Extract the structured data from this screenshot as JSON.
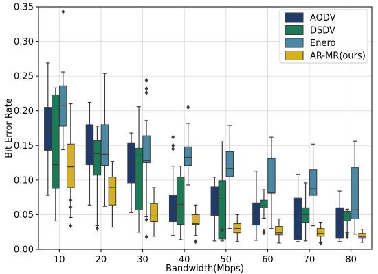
{
  "chart_data": {
    "type": "box",
    "xlabel": "Bandwidth(Mbps)",
    "ylabel": "Bit Error Rate",
    "categories": [
      "10",
      "20",
      "30",
      "40",
      "50",
      "60",
      "70",
      "80"
    ],
    "ylim": [
      0,
      0.35
    ],
    "yticks": [
      "0.00",
      "0.05",
      "0.10",
      "0.15",
      "0.20",
      "0.25",
      "0.30",
      "0.35"
    ],
    "grid": true,
    "legend": "top-right",
    "series": [
      {
        "name": "AODV",
        "color": "#1f3a6b",
        "boxes": [
          {
            "whislo": 0.078,
            "q1": 0.143,
            "med": 0.172,
            "q3": 0.205,
            "whishi": 0.269,
            "fliers": []
          },
          {
            "whislo": 0.064,
            "q1": 0.122,
            "med": 0.146,
            "q3": 0.18,
            "whishi": 0.212,
            "fliers": []
          },
          {
            "whislo": 0.053,
            "q1": 0.096,
            "med": 0.127,
            "q3": 0.153,
            "whishi": 0.168,
            "fliers": []
          },
          {
            "whislo": 0.02,
            "q1": 0.04,
            "med": 0.058,
            "q3": 0.078,
            "whishi": 0.12,
            "fliers": [
              0.145,
              0.15,
              0.162
            ]
          },
          {
            "whislo": 0.012,
            "q1": 0.049,
            "med": 0.07,
            "q3": 0.09,
            "whishi": 0.104,
            "fliers": []
          },
          {
            "whislo": 0.013,
            "q1": 0.035,
            "med": 0.055,
            "q3": 0.067,
            "whishi": 0.113,
            "fliers": []
          },
          {
            "whislo": 0.011,
            "q1": 0.014,
            "med": 0.025,
            "q3": 0.074,
            "whishi": 0.108,
            "fliers": []
          },
          {
            "whislo": 0.011,
            "q1": 0.016,
            "med": 0.048,
            "q3": 0.06,
            "whishi": 0.084,
            "fliers": []
          }
        ]
      },
      {
        "name": "DSDV",
        "color": "#1d7a57",
        "boxes": [
          {
            "whislo": 0.041,
            "q1": 0.088,
            "med": 0.122,
            "q3": 0.223,
            "whishi": 0.233,
            "fliers": []
          },
          {
            "whislo": 0.034,
            "q1": 0.107,
            "med": 0.138,
            "q3": 0.157,
            "whishi": 0.177,
            "fliers": [
              0.03
            ]
          },
          {
            "whislo": 0.025,
            "q1": 0.057,
            "med": 0.136,
            "q3": 0.146,
            "whishi": 0.206,
            "fliers": []
          },
          {
            "whislo": 0.014,
            "q1": 0.036,
            "med": 0.065,
            "q3": 0.104,
            "whishi": 0.12,
            "fliers": []
          },
          {
            "whislo": 0.012,
            "q1": 0.015,
            "med": 0.073,
            "q3": 0.099,
            "whishi": 0.155,
            "fliers": [
              0.028
            ]
          },
          {
            "whislo": 0.045,
            "q1": 0.06,
            "med": 0.063,
            "q3": 0.071,
            "whishi": 0.086,
            "fliers": [
              0.026,
              0.024
            ]
          },
          {
            "whislo": 0.012,
            "q1": 0.039,
            "med": 0.05,
            "q3": 0.06,
            "whishi": 0.096,
            "fliers": []
          },
          {
            "whislo": 0.024,
            "q1": 0.041,
            "med": 0.051,
            "q3": 0.055,
            "whishi": 0.058,
            "fliers": [
              0.018,
              0.021
            ]
          }
        ]
      },
      {
        "name": "Enero",
        "color": "#4d88a3",
        "boxes": [
          {
            "whislo": 0.144,
            "q1": 0.178,
            "med": 0.208,
            "q3": 0.236,
            "whishi": 0.256,
            "fliers": [
              0.343
            ]
          },
          {
            "whislo": 0.062,
            "q1": 0.121,
            "med": 0.137,
            "q3": 0.18,
            "whishi": 0.254,
            "fliers": []
          },
          {
            "whislo": 0.047,
            "q1": 0.125,
            "med": 0.128,
            "q3": 0.164,
            "whishi": 0.186,
            "fliers": [
              0.043,
              0.018,
              0.226,
              0.232,
              0.244
            ]
          },
          {
            "whislo": 0.093,
            "q1": 0.121,
            "med": 0.133,
            "q3": 0.148,
            "whishi": 0.182,
            "fliers": [
              0.205
            ]
          },
          {
            "whislo": 0.03,
            "q1": 0.105,
            "med": 0.117,
            "q3": 0.141,
            "whishi": 0.179,
            "fliers": []
          },
          {
            "whislo": 0.03,
            "q1": 0.081,
            "med": 0.082,
            "q3": 0.131,
            "whishi": 0.162,
            "fliers": []
          },
          {
            "whislo": 0.034,
            "q1": 0.078,
            "med": 0.088,
            "q3": 0.115,
            "whishi": 0.152,
            "fliers": []
          },
          {
            "whislo": 0.022,
            "q1": 0.044,
            "med": 0.057,
            "q3": 0.118,
            "whishi": 0.156,
            "fliers": []
          }
        ]
      },
      {
        "name": "AR-MR(ours)",
        "color": "#d6b023",
        "boxes": [
          {
            "whislo": 0.046,
            "q1": 0.089,
            "med": 0.119,
            "q3": 0.152,
            "whishi": 0.21,
            "fliers": [
              0.071,
              0.061,
              0.034
            ]
          },
          {
            "whislo": 0.032,
            "q1": 0.064,
            "med": 0.089,
            "q3": 0.104,
            "whishi": 0.127,
            "fliers": []
          },
          {
            "whislo": 0.019,
            "q1": 0.04,
            "med": 0.048,
            "q3": 0.066,
            "whishi": 0.089,
            "fliers": []
          },
          {
            "whislo": 0.02,
            "q1": 0.036,
            "med": 0.037,
            "q3": 0.05,
            "whishi": 0.064,
            "fliers": [
              0.011
            ]
          },
          {
            "whislo": 0.011,
            "q1": 0.024,
            "med": 0.03,
            "q3": 0.037,
            "whishi": 0.05,
            "fliers": []
          },
          {
            "whislo": 0.009,
            "q1": 0.021,
            "med": 0.024,
            "q3": 0.033,
            "whishi": 0.044,
            "fliers": []
          },
          {
            "whislo": 0.01,
            "q1": 0.019,
            "med": 0.023,
            "q3": 0.03,
            "whishi": 0.039,
            "fliers": [
              0.009
            ]
          },
          {
            "whislo": 0.01,
            "q1": 0.016,
            "med": 0.018,
            "q3": 0.023,
            "whishi": 0.029,
            "fliers": []
          }
        ]
      }
    ]
  }
}
